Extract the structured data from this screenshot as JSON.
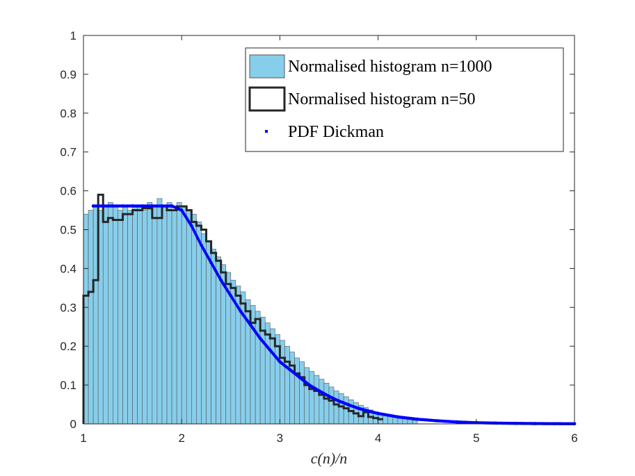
{
  "chart_data": {
    "type": "bar",
    "xlabel": "c(n)/n",
    "ylabel": "",
    "xlim": [
      1,
      6
    ],
    "ylim": [
      0,
      1
    ],
    "xticks": [
      "1",
      "2",
      "3",
      "4",
      "5",
      "6"
    ],
    "yticks": [
      "0",
      "0.1",
      "0.2",
      "0.3",
      "0.4",
      "0.5",
      "0.6",
      "0.7",
      "0.8",
      "0.9",
      "1"
    ],
    "grid": false,
    "legend_position": "top-right",
    "legend": [
      "Normalised histogram n=1000",
      "Normalised histogram n=50",
      "PDF Dickman"
    ],
    "series": [
      {
        "name": "Normalised histogram n=1000",
        "kind": "bar",
        "color": "#87CEEB",
        "edge_color": "#555555",
        "bin_start": 1.0,
        "bin_width": 0.05,
        "values": [
          0.54,
          0.55,
          0.56,
          0.55,
          0.56,
          0.57,
          0.56,
          0.55,
          0.56,
          0.55,
          0.56,
          0.56,
          0.55,
          0.57,
          0.56,
          0.58,
          0.56,
          0.57,
          0.55,
          0.57,
          0.56,
          0.55,
          0.54,
          0.52,
          0.49,
          0.47,
          0.45,
          0.43,
          0.41,
          0.39,
          0.37,
          0.355,
          0.34,
          0.32,
          0.305,
          0.29,
          0.275,
          0.26,
          0.245,
          0.23,
          0.215,
          0.2,
          0.185,
          0.17,
          0.16,
          0.145,
          0.135,
          0.125,
          0.115,
          0.105,
          0.095,
          0.085,
          0.078,
          0.07,
          0.062,
          0.055,
          0.048,
          0.042,
          0.036,
          0.031,
          0.027,
          0.023,
          0.02,
          0.017,
          0.015,
          0.013,
          0.011,
          0.009
        ]
      },
      {
        "name": "Normalised histogram n=50",
        "kind": "stairs",
        "color": "#262626",
        "edges": [
          1.0,
          1.05,
          1.1,
          1.15,
          1.2,
          1.25,
          1.3,
          1.4,
          1.5,
          1.6,
          1.7,
          1.8,
          1.85,
          1.95,
          2.0,
          2.05,
          2.1,
          2.15,
          2.2,
          2.25,
          2.3,
          2.35,
          2.4,
          2.45,
          2.5,
          2.55,
          2.6,
          2.65,
          2.7,
          2.75,
          2.8,
          2.85,
          2.9,
          2.95,
          3.0,
          3.05,
          3.1,
          3.15,
          3.2,
          3.25,
          3.3,
          3.35,
          3.4,
          3.45,
          3.5,
          3.55,
          3.6,
          3.65,
          3.7,
          3.75,
          3.8,
          3.85,
          3.9,
          3.95,
          4.0,
          4.05
        ],
        "values": [
          0.33,
          0.34,
          0.37,
          0.59,
          0.52,
          0.53,
          0.525,
          0.54,
          0.55,
          0.555,
          0.53,
          0.56,
          0.55,
          0.56,
          0.56,
          0.55,
          0.52,
          0.51,
          0.5,
          0.47,
          0.44,
          0.42,
          0.39,
          0.36,
          0.35,
          0.33,
          0.31,
          0.29,
          0.26,
          0.27,
          0.24,
          0.23,
          0.22,
          0.2,
          0.17,
          0.16,
          0.15,
          0.13,
          0.12,
          0.1,
          0.09,
          0.085,
          0.075,
          0.065,
          0.06,
          0.05,
          0.045,
          0.04,
          0.033,
          0.027,
          0.02,
          0.03,
          0.018,
          0.015,
          0.012
        ]
      },
      {
        "name": "PDF Dickman",
        "kind": "points",
        "color": "#0000FF",
        "x": [
          1.1,
          1.2,
          1.3,
          1.4,
          1.5,
          1.6,
          1.7,
          1.8,
          1.9,
          2.0,
          2.1,
          2.2,
          2.3,
          2.4,
          2.5,
          2.6,
          2.7,
          2.8,
          2.9,
          3.0,
          3.1,
          3.2,
          3.3,
          3.4,
          3.5,
          3.6,
          3.7,
          3.8,
          3.9,
          4.0,
          4.2,
          4.4,
          4.6,
          4.8,
          5.0,
          5.2,
          5.4,
          5.6,
          5.8,
          6.0
        ],
        "y": [
          0.561,
          0.561,
          0.561,
          0.561,
          0.561,
          0.561,
          0.561,
          0.561,
          0.561,
          0.55,
          0.51,
          0.46,
          0.415,
          0.37,
          0.33,
          0.29,
          0.255,
          0.22,
          0.19,
          0.16,
          0.14,
          0.12,
          0.1,
          0.085,
          0.071,
          0.059,
          0.049,
          0.04,
          0.033,
          0.027,
          0.018,
          0.012,
          0.008,
          0.005,
          0.003,
          0.002,
          0.0013,
          0.0008,
          0.0005,
          0.0003
        ]
      }
    ]
  }
}
